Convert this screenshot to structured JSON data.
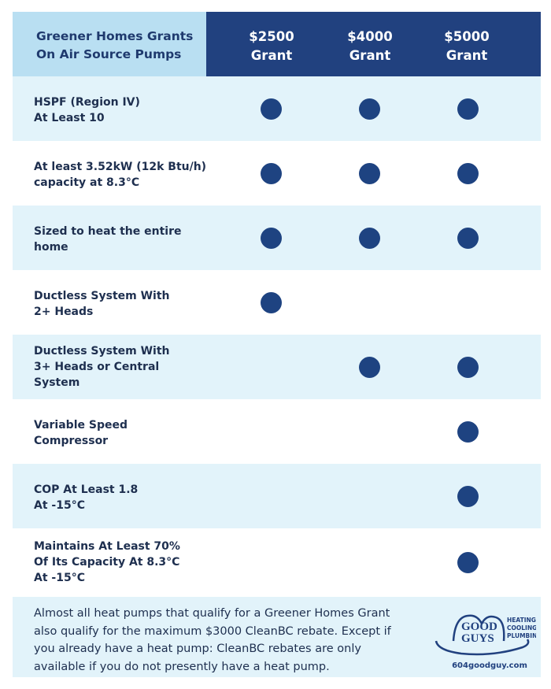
{
  "header": {
    "title": "Greener Homes Grants\nOn Air Source Pumps",
    "grants": [
      "$2500\nGrant",
      "$4000\nGrant",
      "$5000\nGrant"
    ]
  },
  "colors": {
    "header_dark": "#21417f",
    "header_light": "#b9dff2",
    "row_shade": "#e2f3fa",
    "dot": "#1e4381",
    "text": "#1e2f4f"
  },
  "rows": [
    {
      "label": "HSPF (Region IV)\nAt Least 10",
      "qualifies": [
        true,
        true,
        true
      ]
    },
    {
      "label": "At least 3.52kW (12k Btu/h)\ncapacity at 8.3°C",
      "qualifies": [
        true,
        true,
        true
      ]
    },
    {
      "label": "Sized to heat the entire\nhome",
      "qualifies": [
        true,
        true,
        true
      ]
    },
    {
      "label": "Ductless System With\n2+ Heads",
      "qualifies": [
        true,
        false,
        false
      ]
    },
    {
      "label": "Ductless System With\n3+ Heads or Central\nSystem",
      "qualifies": [
        false,
        true,
        true
      ]
    },
    {
      "label": "Variable Speed\nCompressor",
      "qualifies": [
        false,
        false,
        true
      ]
    },
    {
      "label": "COP At Least 1.8\nAt -15°C",
      "qualifies": [
        false,
        false,
        true
      ]
    },
    {
      "label": "Maintains At Least 70%\nOf Its Capacity At 8.3°C\nAt -15°C",
      "qualifies": [
        false,
        false,
        true
      ]
    }
  ],
  "footer": {
    "note": "Almost all heat pumps that qualify for a Greener Homes Grant also qualify for the maximum $3000 CleanBC rebate. Except if you already have a heat pump: CleanBC rebates are only available if you do not presently have a heat pump.",
    "logo_text": [
      "GOOD",
      "GUYS"
    ],
    "logo_tagline": [
      "HEATING",
      "COOLING",
      "PLUMBING"
    ],
    "website": "604goodguy.com"
  }
}
